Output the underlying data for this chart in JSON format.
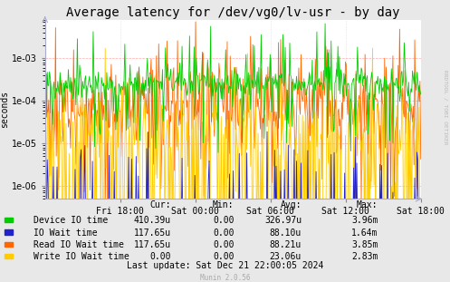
{
  "title": "Average latency for /dev/vg0/lv-usr - by day",
  "ylabel": "seconds",
  "background_color": "#e8e8e8",
  "plot_background_color": "#ffffff",
  "xlabel_ticks": [
    "Fri 18:00",
    "Sat 00:00",
    "Sat 06:00",
    "Sat 12:00",
    "Sat 18:00"
  ],
  "series_colors": [
    "#00cc00",
    "#2222cc",
    "#ff6600",
    "#ffcc00"
  ],
  "series_labels": [
    "Device IO time",
    "IO Wait time",
    "Read IO Wait time",
    "Write IO Wait time"
  ],
  "legend_headers": [
    "Cur:",
    "Min:",
    "Avg:",
    "Max:"
  ],
  "legend_data": [
    [
      "410.39u",
      "0.00",
      "326.97u",
      "3.96m"
    ],
    [
      "117.65u",
      "0.00",
      "88.10u",
      "1.64m"
    ],
    [
      "117.65u",
      "0.00",
      "88.21u",
      "3.85m"
    ],
    [
      "0.00",
      "0.00",
      "23.06u",
      "2.83m"
    ]
  ],
  "last_update": "Last update: Sat Dec 21 22:00:05 2024",
  "munin_version": "Munin 2.0.56",
  "rrdtool_label": "RRDTOOL / TOBI OETIKER",
  "title_fontsize": 10,
  "axis_fontsize": 7,
  "legend_fontsize": 7,
  "n_points": 500,
  "seed": 42
}
